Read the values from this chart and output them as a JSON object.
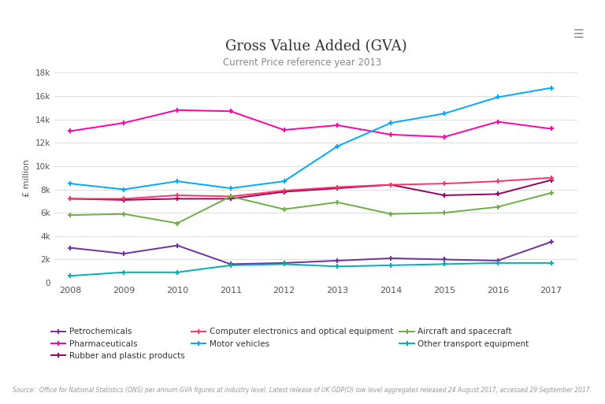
{
  "title": "Gross Value Added (GVA)",
  "subtitle": "Current Price reference year 2013",
  "ylabel": "£ million",
  "source": "Source:  Office for National Statistics (ONS) per annum GVA figures at industry level. Latest release of UK GDP(O) low level aggregates released 24 August 2017, accessed 29 September 2017.",
  "years": [
    2008,
    2009,
    2010,
    2011,
    2012,
    2013,
    2014,
    2015,
    2016,
    2017
  ],
  "series": [
    {
      "name": "Petrochemicals",
      "color": "#7030a0",
      "values": [
        3000,
        2500,
        3200,
        1600,
        1700,
        1900,
        2100,
        2000,
        1900,
        3500
      ]
    },
    {
      "name": "Pharmaceuticals",
      "color": "#ff00aa",
      "values": [
        13000,
        13700,
        14800,
        14700,
        13100,
        13500,
        12700,
        12500,
        13800,
        13200
      ]
    },
    {
      "name": "Rubber and plastic products",
      "color": "#9b0063",
      "values": [
        7200,
        7100,
        7200,
        7200,
        7800,
        8100,
        8400,
        7500,
        7600,
        8800
      ]
    },
    {
      "name": "Computer electronics and optical equipment",
      "color": "#ff3366",
      "values": [
        7200,
        7200,
        7500,
        7400,
        7900,
        8200,
        8400,
        8500,
        8700,
        9000
      ]
    },
    {
      "name": "Motor vehicles",
      "color": "#00aaff",
      "values": [
        8500,
        8000,
        8700,
        8100,
        8700,
        11700,
        13700,
        14500,
        15900,
        16700
      ]
    },
    {
      "name": "Aircraft and spacecraft",
      "color": "#70ad47",
      "values": [
        5800,
        5900,
        5100,
        7400,
        6300,
        6900,
        5900,
        6000,
        6500,
        7700
      ]
    },
    {
      "name": "Other transport equipment",
      "color": "#00b0b0",
      "values": [
        600,
        900,
        900,
        1500,
        1600,
        1400,
        1500,
        1600,
        1700,
        1700
      ]
    }
  ],
  "ylim": [
    0,
    18000
  ],
  "yticks": [
    0,
    2000,
    4000,
    6000,
    8000,
    10000,
    12000,
    14000,
    16000,
    18000
  ],
  "ytick_labels": [
    "0",
    "2k",
    "4k",
    "6k",
    "8k",
    "10k",
    "12k",
    "14k",
    "16k",
    "18k"
  ],
  "background_color": "#ffffff",
  "grid_color": "#e0e0e0",
  "legend_order": [
    "Petrochemicals",
    "Pharmaceuticals",
    "Rubber and plastic products",
    "Computer electronics and optical equipment",
    "Motor vehicles",
    "Aircraft and spacecraft",
    "Other transport equipment"
  ]
}
